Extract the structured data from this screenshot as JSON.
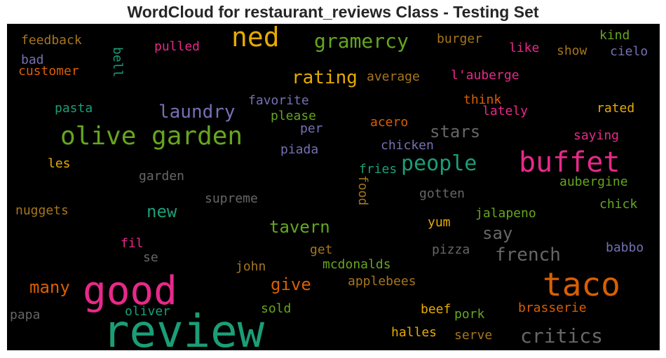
{
  "title": "WordCloud for restaurant_reviews Class - Testing Set",
  "colors": {
    "background": "#000000",
    "title": "#262626"
  },
  "words": [
    {
      "text": "review",
      "color": "#1b9e77"
    },
    {
      "text": "good",
      "color": "#e7298a"
    },
    {
      "text": "taco",
      "color": "#d95f02"
    },
    {
      "text": "buffet",
      "color": "#e7298a"
    },
    {
      "text": "olive garden",
      "color": "#66a61e"
    },
    {
      "text": "ned",
      "color": "#e6ab02"
    },
    {
      "text": "people",
      "color": "#1b9e77"
    },
    {
      "text": "critics",
      "color": "#666666"
    },
    {
      "text": "gramercy",
      "color": "#66a61e"
    },
    {
      "text": "rating",
      "color": "#e6ab02"
    },
    {
      "text": "laundry",
      "color": "#7570b3"
    },
    {
      "text": "french",
      "color": "#666666"
    },
    {
      "text": "many",
      "color": "#d95f02"
    },
    {
      "text": "tavern",
      "color": "#66a61e"
    },
    {
      "text": "new",
      "color": "#1b9e77"
    },
    {
      "text": "stars",
      "color": "#666666"
    },
    {
      "text": "say",
      "color": "#666666"
    },
    {
      "text": "give",
      "color": "#d95f02"
    },
    {
      "text": "feedback",
      "color": "#a6761d"
    },
    {
      "text": "pulled",
      "color": "#e7298a"
    },
    {
      "text": "bell",
      "color": "#1b9e77"
    },
    {
      "text": "bad",
      "color": "#7570b3"
    },
    {
      "text": "customer",
      "color": "#d95f02"
    },
    {
      "text": "burger",
      "color": "#a6761d"
    },
    {
      "text": "kind",
      "color": "#66a61e"
    },
    {
      "text": "like",
      "color": "#e7298a"
    },
    {
      "text": "show",
      "color": "#a6761d"
    },
    {
      "text": "cielo",
      "color": "#7570b3"
    },
    {
      "text": "average",
      "color": "#a6761d"
    },
    {
      "text": "l'auberge",
      "color": "#e7298a"
    },
    {
      "text": "favorite",
      "color": "#7570b3"
    },
    {
      "text": "think",
      "color": "#d95f02"
    },
    {
      "text": "pasta",
      "color": "#1b9e77"
    },
    {
      "text": "please",
      "color": "#66a61e"
    },
    {
      "text": "lately",
      "color": "#e7298a"
    },
    {
      "text": "rated",
      "color": "#e6ab02"
    },
    {
      "text": "acero",
      "color": "#d95f02"
    },
    {
      "text": "per",
      "color": "#7570b3"
    },
    {
      "text": "saying",
      "color": "#e7298a"
    },
    {
      "text": "chicken",
      "color": "#7570b3"
    },
    {
      "text": "piada",
      "color": "#7570b3"
    },
    {
      "text": "les",
      "color": "#e6ab02"
    },
    {
      "text": "fries",
      "color": "#1b9e77"
    },
    {
      "text": "garden",
      "color": "#666666"
    },
    {
      "text": "aubergine",
      "color": "#66a61e"
    },
    {
      "text": "food",
      "color": "#a6761d"
    },
    {
      "text": "gotten",
      "color": "#666666"
    },
    {
      "text": "supreme",
      "color": "#666666"
    },
    {
      "text": "chick",
      "color": "#66a61e"
    },
    {
      "text": "nuggets",
      "color": "#a6761d"
    },
    {
      "text": "jalapeno",
      "color": "#66a61e"
    },
    {
      "text": "yum",
      "color": "#e6ab02"
    },
    {
      "text": "fil",
      "color": "#e7298a"
    },
    {
      "text": "get",
      "color": "#a6761d"
    },
    {
      "text": "pizza",
      "color": "#666666"
    },
    {
      "text": "babbo",
      "color": "#7570b3"
    },
    {
      "text": "se",
      "color": "#666666"
    },
    {
      "text": "john",
      "color": "#a6761d"
    },
    {
      "text": "mcdonalds",
      "color": "#66a61e"
    },
    {
      "text": "applebees",
      "color": "#a6761d"
    },
    {
      "text": "oliver",
      "color": "#1b9e77"
    },
    {
      "text": "sold",
      "color": "#66a61e"
    },
    {
      "text": "beef",
      "color": "#e6ab02"
    },
    {
      "text": "pork",
      "color": "#66a61e"
    },
    {
      "text": "brasserie",
      "color": "#d95f02"
    },
    {
      "text": "papa",
      "color": "#666666"
    },
    {
      "text": "halles",
      "color": "#e6ab02"
    },
    {
      "text": "serve",
      "color": "#a6761d"
    }
  ]
}
